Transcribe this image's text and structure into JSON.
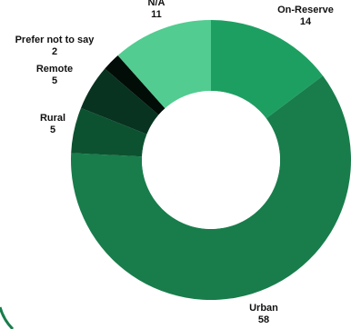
{
  "chart_data": {
    "type": "pie",
    "donut": true,
    "title": "",
    "series": [
      {
        "name": "On-Reserve",
        "value": 14,
        "color": "#1e9f62"
      },
      {
        "name": "Urban",
        "value": 58,
        "color": "#187d4b"
      },
      {
        "name": "Rural",
        "value": 5,
        "color": "#0d5230"
      },
      {
        "name": "Remote",
        "value": 5,
        "color": "#073320"
      },
      {
        "name": "Prefer not to say",
        "value": 2,
        "color": "#020d07"
      },
      {
        "name": "N/A",
        "value": 11,
        "color": "#52cc90"
      }
    ],
    "legend": "none",
    "labels": "outside-slices"
  }
}
